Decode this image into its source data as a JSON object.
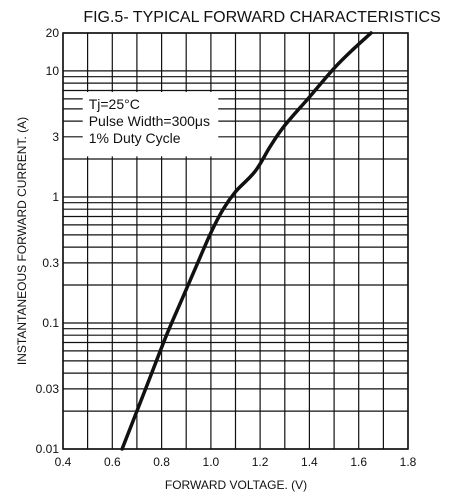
{
  "chart_data": {
    "type": "line",
    "title": "FIG.5- TYPICAL FORWARD CHARACTERISTICS",
    "xlabel": "FORWARD VOLTAGE. (V)",
    "ylabel": "INSTANTANEOUS FORWARD CURRENT. (A)",
    "xscale": "linear",
    "yscale": "log",
    "xlim": [
      0.4,
      1.8
    ],
    "ylim": [
      0.01,
      20
    ],
    "grid": true,
    "x_ticks": [
      "0.4",
      "0.6",
      "0.8",
      "1.0",
      "1.2",
      "1.4",
      "1.6",
      "1.8"
    ],
    "y_ticks": [
      "0.01",
      "0.03",
      "0.1",
      "0.3",
      "1",
      "3",
      "10",
      "20"
    ],
    "annotation": [
      "Tj=25°C",
      "Pulse Width=300μs",
      "1% Duty Cycle"
    ],
    "series": [
      {
        "x": [
          0.64,
          0.7,
          0.76,
          0.82,
          0.88,
          0.94,
          1.0,
          1.05,
          1.1,
          1.18,
          1.24,
          1.3,
          1.4,
          1.5,
          1.58,
          1.65
        ],
        "y": [
          0.01,
          0.02,
          0.04,
          0.08,
          0.15,
          0.28,
          0.52,
          0.8,
          1.1,
          1.6,
          2.5,
          3.7,
          6.2,
          10.5,
          15,
          20
        ]
      }
    ],
    "color": "#111111"
  }
}
